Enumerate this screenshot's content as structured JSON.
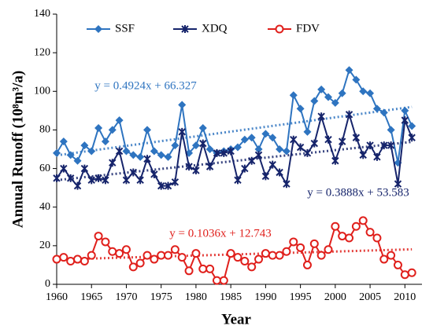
{
  "chart_data": {
    "type": "line",
    "x_label": "Year",
    "y_label": "Annual Runoff (10⁸m³/a)",
    "x": [
      1960,
      1961,
      1962,
      1963,
      1964,
      1965,
      1966,
      1967,
      1968,
      1969,
      1970,
      1971,
      1972,
      1973,
      1974,
      1975,
      1976,
      1977,
      1978,
      1979,
      1980,
      1981,
      1982,
      1983,
      1984,
      1985,
      1986,
      1987,
      1988,
      1989,
      1990,
      1991,
      1992,
      1993,
      1994,
      1995,
      1996,
      1997,
      1998,
      1999,
      2000,
      2001,
      2002,
      2003,
      2004,
      2005,
      2006,
      2007,
      2008,
      2009,
      2010,
      2011
    ],
    "xlim": [
      1960,
      2012
    ],
    "xticks": [
      1960,
      1965,
      1970,
      1975,
      1980,
      1985,
      1990,
      1995,
      2000,
      2005,
      2010
    ],
    "ylim": [
      0,
      140
    ],
    "yticks": [
      0,
      20,
      40,
      60,
      80,
      100,
      120,
      140
    ],
    "series": [
      {
        "name": "SSF",
        "color": "#2e74c0",
        "marker": "diamond",
        "values": [
          68,
          74,
          67,
          64,
          72,
          69,
          81,
          74,
          80,
          85,
          69,
          67,
          66,
          80,
          69,
          67,
          66,
          72,
          93,
          68,
          72,
          81,
          70,
          68,
          69,
          70,
          71,
          75,
          76,
          70,
          78,
          76,
          70,
          69,
          98,
          91,
          79,
          95,
          101,
          97,
          94,
          99,
          111,
          106,
          100,
          99,
          91,
          89,
          80,
          63,
          90,
          82
        ],
        "trend": {
          "slope": 0.4924,
          "intercept": 66.327,
          "label": "y = 0.4924x + 66.327"
        }
      },
      {
        "name": "XDQ",
        "color": "#16246b",
        "marker": "star",
        "values": [
          55,
          60,
          55,
          51,
          60,
          54,
          55,
          54,
          63,
          69,
          54,
          58,
          54,
          65,
          57,
          51,
          51,
          53,
          79,
          61,
          59,
          73,
          61,
          68,
          68,
          69,
          54,
          60,
          64,
          67,
          56,
          62,
          58,
          52,
          75,
          71,
          68,
          73,
          87,
          75,
          64,
          74,
          88,
          76,
          67,
          72,
          66,
          72,
          72,
          52,
          85,
          76
        ],
        "trend": {
          "slope": 0.3888,
          "intercept": 53.583,
          "label": "y = 0.3888x + 53.583"
        }
      },
      {
        "name": "FDV",
        "color": "#e0201c",
        "marker": "circle",
        "values": [
          13,
          14,
          12,
          13,
          12,
          15,
          25,
          22,
          17,
          16,
          18,
          9,
          11,
          15,
          13,
          15,
          15,
          18,
          14,
          7,
          16,
          8,
          8,
          2,
          2,
          16,
          14,
          12,
          9,
          13,
          16,
          15,
          15,
          17,
          22,
          19,
          10,
          21,
          15,
          18,
          30,
          25,
          24,
          30,
          33,
          27,
          24,
          13,
          15,
          10,
          5,
          6
        ],
        "trend": {
          "slope": 0.1036,
          "intercept": 12.743,
          "label": "y = 0.1036x + 12.743"
        }
      }
    ]
  }
}
